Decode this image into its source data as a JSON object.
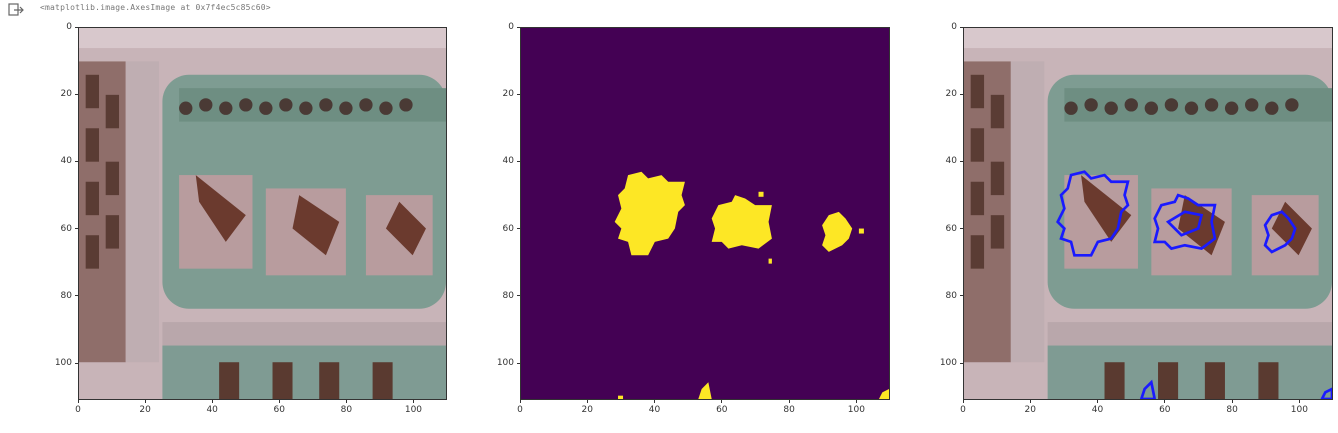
{
  "output": {
    "icon": "output-arrow-icon",
    "text": "<matplotlib.image.AxesImage at 0x7f4ec5c85c60>"
  },
  "chart_data": [
    {
      "type": "image",
      "content": "aerial photograph of residential buildings with parking lot",
      "x_ticks": [
        "0",
        "20",
        "40",
        "60",
        "80",
        "100"
      ],
      "y_ticks": [
        "0",
        "20",
        "40",
        "60",
        "80",
        "100"
      ]
    },
    {
      "type": "heatmap",
      "content": "binary segmentation mask (buildings in yellow on purple background)",
      "colors": {
        "background": "#440154",
        "foreground": "#fde725"
      },
      "x_ticks": [
        "0",
        "20",
        "40",
        "60",
        "80",
        "100"
      ],
      "y_ticks": [
        "0",
        "20",
        "40",
        "60",
        "80",
        "100"
      ]
    },
    {
      "type": "image",
      "content": "aerial photograph with blue contours of predicted building masks overlaid",
      "colors": {
        "contour": "#1a1aff"
      },
      "x_ticks": [
        "0",
        "20",
        "40",
        "60",
        "80",
        "100"
      ],
      "y_ticks": [
        "0",
        "20",
        "40",
        "60",
        "80",
        "100"
      ]
    }
  ]
}
